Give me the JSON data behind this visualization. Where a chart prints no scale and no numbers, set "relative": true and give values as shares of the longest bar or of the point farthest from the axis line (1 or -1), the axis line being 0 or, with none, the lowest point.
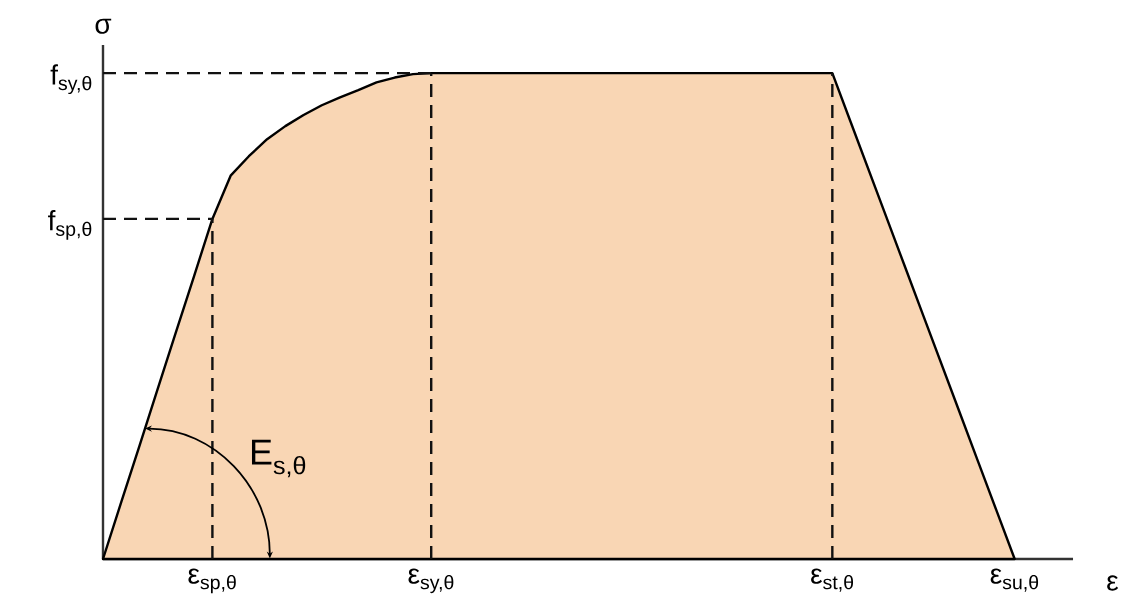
{
  "chart_data": {
    "type": "area",
    "relative": true,
    "xlabel": "ε",
    "ylabel": "σ",
    "categories": [
      null,
      null,
      null,
      null,
      null,
      null,
      "ε$_{sp,θ}$",
      null,
      null,
      null,
      null,
      null,
      null,
      null,
      null,
      null,
      null,
      null,
      "ε$_{sy,θ}$",
      null,
      null,
      null,
      null,
      null,
      null,
      null,
      null,
      null,
      null,
      null,
      null,
      null,
      null,
      null,
      null,
      null,
      null,
      null,
      null,
      null,
      "ε$_{st,θ}$",
      null,
      null,
      null,
      null,
      null,
      null,
      null,
      null,
      null,
      "ε$_{su,θ}$"
    ],
    "series": [
      {
        "color": "#f9d6b4",
        "values": [
          0,
          0.117,
          0.233,
          0.35,
          0.467,
          0.583,
          0.7,
          0.789,
          0.829,
          0.864,
          0.891,
          0.914,
          0.934,
          0.95,
          0.965,
          0.981,
          0.991,
          0.998,
          1,
          1,
          1,
          1,
          1,
          1,
          1,
          1,
          1,
          1,
          1,
          1,
          1,
          1,
          1,
          1,
          1,
          1,
          1,
          1,
          1,
          1,
          1,
          0.9,
          0.8,
          0.7,
          0.6,
          0.5,
          0.4,
          0.3,
          0.2,
          0.1,
          0
        ]
      }
    ],
    "ref_lines": [
      {
        "axis": "y",
        "value": 1,
        "label": "f$_{sy,θ}$",
        "line_style": "dashed"
      },
      {
        "axis": "y",
        "value": 0.7,
        "label": "f$_{sp,θ}$",
        "line_style": "dashed"
      },
      {
        "axis": "x",
        "value": "ε$_{sp,θ}$",
        "line_style": "dashed"
      },
      {
        "axis": "x",
        "value": "ε$_{sy,θ}$",
        "line_style": "dashed"
      },
      {
        "axis": "x",
        "value": "ε$_{st,θ}$",
        "line_style": "dashed"
      }
    ],
    "annotations": [
      "E$_{s,θ}$"
    ]
  }
}
